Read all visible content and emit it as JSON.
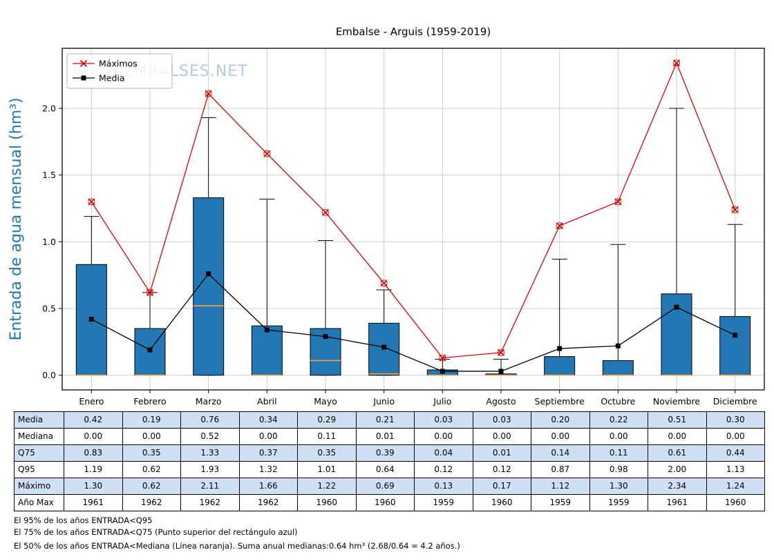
{
  "title": "Embalse - Arguis (1959-2019)",
  "watermark": "WWW.EMBALSES.NET",
  "legend": [
    {
      "label": "Máximos",
      "marker": "x",
      "color": "#e50000"
    },
    {
      "label": "Media",
      "marker": "square",
      "color": "#000000"
    }
  ],
  "chart_data": {
    "type": "boxplot+line",
    "title": "Embalse - Arguis (1959-2019)",
    "ylabel": "Entrada de agua mensual (hm³)",
    "xlabel": "",
    "categories": [
      "Enero",
      "Febrero",
      "Marzo",
      "Abril",
      "Mayo",
      "Junio",
      "Julio",
      "Agosto",
      "Septiembre",
      "Octubre",
      "Noviembre",
      "Diciembre"
    ],
    "series": [
      {
        "name": "Media",
        "values": [
          0.42,
          0.19,
          0.76,
          0.34,
          0.29,
          0.21,
          0.03,
          0.03,
          0.2,
          0.22,
          0.51,
          0.3
        ]
      },
      {
        "name": "Mediana",
        "values": [
          0.0,
          0.0,
          0.52,
          0.0,
          0.11,
          0.01,
          0.0,
          0.0,
          0.0,
          0.0,
          0.0,
          0.0
        ]
      },
      {
        "name": "Q75",
        "values": [
          0.83,
          0.35,
          1.33,
          0.37,
          0.35,
          0.39,
          0.04,
          0.01,
          0.14,
          0.11,
          0.61,
          0.44
        ]
      },
      {
        "name": "Q95",
        "values": [
          1.19,
          0.62,
          1.93,
          1.32,
          1.01,
          0.64,
          0.12,
          0.12,
          0.87,
          0.98,
          2.0,
          1.13
        ]
      },
      {
        "name": "Máximo",
        "values": [
          1.3,
          0.62,
          2.11,
          1.66,
          1.22,
          0.69,
          0.13,
          0.17,
          1.12,
          1.3,
          2.34,
          1.24
        ]
      },
      {
        "name": "Año Max",
        "values": [
          1961,
          1962,
          1962,
          1962,
          1960,
          1960,
          1959,
          1960,
          1959,
          1959,
          1961,
          1960
        ]
      }
    ],
    "yticks": [
      0.0,
      0.5,
      1.0,
      1.5,
      2.0
    ],
    "ylim": [
      -0.11,
      2.45
    ],
    "grid": true,
    "legend_position": "upper left"
  },
  "table": {
    "row_labels": [
      "Media",
      "Mediana",
      "Q75",
      "Q95",
      "Máximo",
      "Año Max"
    ],
    "rows": [
      [
        "0.42",
        "0.19",
        "0.76",
        "0.34",
        "0.29",
        "0.21",
        "0.03",
        "0.03",
        "0.20",
        "0.22",
        "0.51",
        "0.30"
      ],
      [
        "0.00",
        "0.00",
        "0.52",
        "0.00",
        "0.11",
        "0.01",
        "0.00",
        "0.00",
        "0.00",
        "0.00",
        "0.00",
        "0.00"
      ],
      [
        "0.83",
        "0.35",
        "1.33",
        "0.37",
        "0.35",
        "0.39",
        "0.04",
        "0.01",
        "0.14",
        "0.11",
        "0.61",
        "0.44"
      ],
      [
        "1.19",
        "0.62",
        "1.93",
        "1.32",
        "1.01",
        "0.64",
        "0.12",
        "0.12",
        "0.87",
        "0.98",
        "2.00",
        "1.13"
      ],
      [
        "1.30",
        "0.62",
        "2.11",
        "1.66",
        "1.22",
        "0.69",
        "0.13",
        "0.17",
        "1.12",
        "1.30",
        "2.34",
        "1.24"
      ],
      [
        "1961",
        "1962",
        "1962",
        "1962",
        "1960",
        "1960",
        "1959",
        "1960",
        "1959",
        "1959",
        "1961",
        "1960"
      ]
    ]
  },
  "footnotes": [
    "El 95% de los años ENTRADA<Q95",
    "El 75% de los años ENTRADA<Q75 (Punto superior del rectángulo azul)",
    "El 50% de los años ENTRADA<Mediana (Línea naranja). Suma anual medianas:0.64 hm³ (2.68/0.64 = 4.2 años.)"
  ],
  "colors": {
    "box_fill": "#2278b5",
    "box_edge": "#000000",
    "median_line": "#ff9e3d",
    "max_line": "#e50000",
    "mean_line": "#000000",
    "ylabel": "#1f77b4",
    "grid": "#cccccc",
    "axis": "#000000",
    "watermark": "#a9c6d8",
    "table_alt_row": "#cfe0f5",
    "legend_border": "#b5b5b5"
  }
}
